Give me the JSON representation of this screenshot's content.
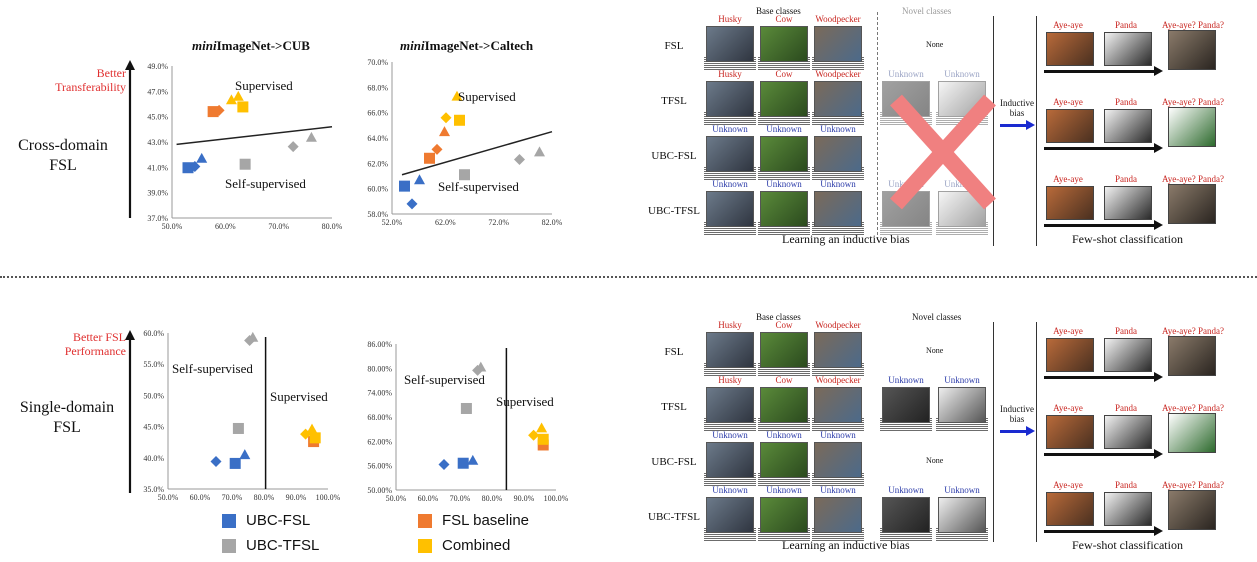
{
  "left_top": {
    "better_label": "Better Transferability",
    "side_label_1": "Cross-domain",
    "side_label_2": "FSL"
  },
  "left_bottom": {
    "better_label": "Better FSL Performance",
    "side_label_1": "Single-domain",
    "side_label_2": "FSL"
  },
  "legend": [
    {
      "label": "UBC-FSL",
      "color": "#3a6fc6"
    },
    {
      "label": "UBC-TFSL",
      "color": "#a6a6a6"
    },
    {
      "label": "FSL baseline",
      "color": "#ef7a30"
    },
    {
      "label": "Combined",
      "color": "#ffc000"
    }
  ],
  "colors": {
    "ubc_fsl": "#3a6fc6",
    "ubc_tfsl": "#a6a6a6",
    "fsl_baseline": "#ef7a30",
    "combined": "#ffc000",
    "red_label": "#e03030"
  },
  "chart_data": [
    {
      "type": "scatter",
      "title_italic": "mini",
      "title_rest": "ImageNet->CUB",
      "xticks": [
        "50.0%",
        "60.0%",
        "70.0%",
        "80.0%"
      ],
      "yticks": [
        "37.0%",
        "39.0%",
        "41.0%",
        "43.0%",
        "45.0%",
        "47.0%",
        "49.0%"
      ],
      "xlim": [
        50,
        85
      ],
      "ylim": [
        37,
        50
      ],
      "annotations": [
        "Supervised",
        "Self-supervised"
      ],
      "trendline": [
        [
          51,
          43.3
        ],
        [
          85,
          44.8
        ]
      ],
      "series": [
        {
          "group": "UBC-FSL",
          "points": [
            [
              53.5,
              41.3,
              "s"
            ],
            [
              55,
              41.4,
              "d"
            ],
            [
              56.5,
              42.1,
              "t"
            ]
          ]
        },
        {
          "group": "UBC-TFSL",
          "points": [
            [
              66,
              41.6,
              "s"
            ],
            [
              76.5,
              43.1,
              "d"
            ],
            [
              80.5,
              43.9,
              "t"
            ]
          ]
        },
        {
          "group": "FSL baseline",
          "points": [
            [
              59,
              46.1,
              "s"
            ],
            [
              60.3,
              46.2,
              "d"
            ]
          ]
        },
        {
          "group": "Combined",
          "points": [
            [
              63,
              47.1,
              "t"
            ],
            [
              64.5,
              47.4,
              "t"
            ],
            [
              65.5,
              46.5,
              "s"
            ]
          ]
        }
      ]
    },
    {
      "type": "scatter",
      "title_italic": "mini",
      "title_rest": "ImageNet->Caltech",
      "xticks": [
        "52.0%",
        "62.0%",
        "72.0%",
        "82.0%"
      ],
      "yticks": [
        "58.0%",
        "60.0%",
        "62.0%",
        "64.0%",
        "66.0%",
        "68.0%",
        "70.0%"
      ],
      "xlim": [
        52,
        84
      ],
      "ylim": [
        58,
        70
      ],
      "annotations": [
        "Supervised",
        "Self-supervised"
      ],
      "trendline": [
        [
          54,
          61.1
        ],
        [
          84,
          64.5
        ]
      ],
      "series": [
        {
          "group": "UBC-FSL",
          "points": [
            [
              54.5,
              60.2,
              "s"
            ],
            [
              56,
              58.8,
              "d"
            ],
            [
              57.5,
              60.7,
              "t"
            ]
          ]
        },
        {
          "group": "UBC-TFSL",
          "points": [
            [
              66.5,
              61.1,
              "s"
            ],
            [
              77.5,
              62.3,
              "d"
            ],
            [
              81.5,
              62.9,
              "t"
            ]
          ]
        },
        {
          "group": "FSL baseline",
          "points": [
            [
              59.5,
              62.4,
              "s"
            ],
            [
              61,
              63.1,
              "d"
            ],
            [
              62.5,
              64.5,
              "t"
            ]
          ]
        },
        {
          "group": "Combined",
          "points": [
            [
              62.8,
              65.6,
              "d"
            ],
            [
              65,
              67.3,
              "t"
            ],
            [
              65.5,
              65.4,
              "s"
            ]
          ]
        }
      ]
    },
    {
      "type": "scatter",
      "xticks": [
        "50.0%",
        "60.0%",
        "70.0%",
        "80.0%",
        "90.0%",
        "100.0%"
      ],
      "yticks": [
        "35.0%",
        "40.0%",
        "45.0%",
        "50.0%",
        "55.0%",
        "60.0%"
      ],
      "xlim": [
        50,
        100
      ],
      "ylim": [
        35,
        60
      ],
      "annotations": [
        "Self-supervised",
        "Supervised"
      ],
      "divider_x": 80.5,
      "series": [
        {
          "group": "UBC-FSL",
          "points": [
            [
              65,
              39.4,
              "d"
            ],
            [
              71,
              39.1,
              "s"
            ],
            [
              74,
              40.5,
              "t"
            ]
          ]
        },
        {
          "group": "UBC-TFSL",
          "points": [
            [
              72,
              44.7,
              "s"
            ],
            [
              76.5,
              59.3,
              "t"
            ],
            [
              75.5,
              58.8,
              "d"
            ]
          ]
        },
        {
          "group": "FSL baseline",
          "points": [
            [
              95.5,
              42.6,
              "s"
            ]
          ]
        },
        {
          "group": "Combined",
          "points": [
            [
              93,
              43.8,
              "d"
            ],
            [
              95,
              44.6,
              "t"
            ],
            [
              96,
              43.2,
              "s"
            ]
          ]
        }
      ]
    },
    {
      "type": "scatter",
      "xticks": [
        "50.0%",
        "60.0%",
        "70.0%",
        "80.0%",
        "90.0%",
        "100.0%"
      ],
      "yticks": [
        "50.00%",
        "56.00%",
        "62.00%",
        "68.00%",
        "74.00%",
        "80.00%",
        "86.00%"
      ],
      "xlim": [
        50,
        100
      ],
      "ylim": [
        50,
        86
      ],
      "annotations": [
        "Self-supervised",
        "Supervised"
      ],
      "divider_x": 84.5,
      "series": [
        {
          "group": "UBC-FSL",
          "points": [
            [
              65,
              56.3,
              "d"
            ],
            [
              71,
              56.6,
              "s"
            ],
            [
              74,
              57.3,
              "t"
            ]
          ]
        },
        {
          "group": "UBC-TFSL",
          "points": [
            [
              72,
              70.1,
              "s"
            ],
            [
              76.5,
              80.3,
              "t"
            ],
            [
              75.5,
              79.5,
              "d"
            ]
          ]
        },
        {
          "group": "FSL baseline",
          "points": [
            [
              96,
              61.1,
              "s"
            ]
          ]
        },
        {
          "group": "Combined",
          "points": [
            [
              93,
              63.5,
              "d"
            ],
            [
              95.5,
              65.3,
              "t"
            ],
            [
              96,
              62.5,
              "s"
            ]
          ]
        }
      ]
    }
  ],
  "diagram_top": {
    "base_classes": "Base classes",
    "novel_classes": "Novel classes",
    "rows": [
      {
        "label": "FSL",
        "names": [
          "Husky",
          "Cow",
          "Woodpecker"
        ],
        "novel": [
          "None"
        ]
      },
      {
        "label": "TFSL",
        "names": [
          "Husky",
          "Cow",
          "Woodpecker"
        ],
        "novel": [
          "Unknown",
          "Unknown"
        ]
      },
      {
        "label": "UBC-FSL",
        "names": [
          "Unknown",
          "Unknown",
          "Unknown"
        ],
        "novel": []
      },
      {
        "label": "UBC-TFSL",
        "names": [
          "Unknown",
          "Unknown",
          "Unknown"
        ],
        "novel": [
          "Unknown",
          "Unknown"
        ]
      }
    ],
    "inductive_bias": "Inductive bias",
    "fsc_rows": [
      [
        "Aye-aye",
        "Panda",
        "Aye-aye? Panda?"
      ],
      [
        "Aye-aye",
        "Panda",
        "Aye-aye? Panda?"
      ],
      [
        "Aye-aye",
        "Panda",
        "Aye-aye? Panda?"
      ]
    ],
    "caption_left": "Learning an inductive bias",
    "caption_right": "Few-shot classification"
  },
  "diagram_bottom": {
    "base_classes": "Base classes",
    "novel_classes": "Novel classes",
    "rows": [
      {
        "label": "FSL",
        "names": [
          "Husky",
          "Cow",
          "Woodpecker"
        ],
        "novel": [
          "None"
        ]
      },
      {
        "label": "TFSL",
        "names": [
          "Husky",
          "Cow",
          "Woodpecker"
        ],
        "novel": [
          "Unknown",
          "Unknown"
        ]
      },
      {
        "label": "UBC-FSL",
        "names": [
          "Unknown",
          "Unknown",
          "Unknown"
        ],
        "novel": [
          "None"
        ]
      },
      {
        "label": "UBC-TFSL",
        "names": [
          "Unknown",
          "Unknown",
          "Unknown"
        ],
        "novel": [
          "Unknown",
          "Unknown"
        ]
      }
    ],
    "inductive_bias": "Inductive bias",
    "fsc_rows": [
      [
        "Aye-aye",
        "Panda",
        "Aye-aye? Panda?"
      ],
      [
        "Aye-aye",
        "Panda",
        "Aye-aye? Panda?"
      ],
      [
        "Aye-aye",
        "Panda",
        "Aye-aye? Panda?"
      ]
    ],
    "caption_left": "Learning an inductive bias",
    "caption_right": "Few-shot classification"
  }
}
